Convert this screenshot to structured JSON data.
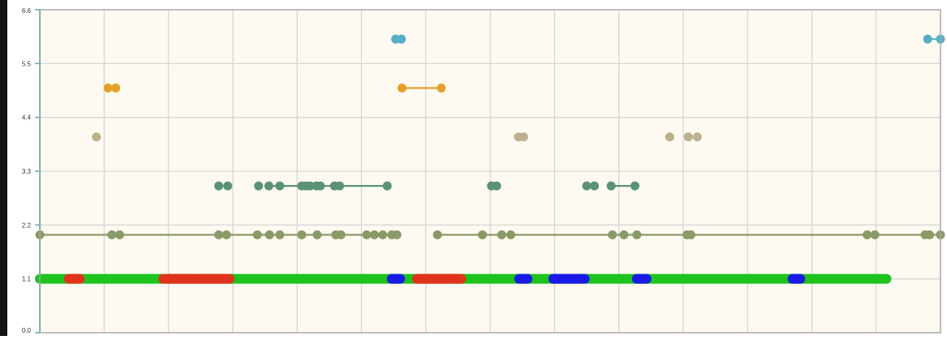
{
  "chart_data": {
    "type": "scatter",
    "ylim": [
      0.0,
      6.6
    ],
    "yticks": [
      "0.0",
      "1.1",
      "2.2",
      "3.3",
      "4.4",
      "5.5",
      "6.6"
    ],
    "grid": true,
    "title": "",
    "xlabel": "",
    "ylabel": "",
    "xlim": [
      0,
      14
    ],
    "series": [
      {
        "level": 1.1,
        "color": "#1ec31e",
        "segments": [
          [
            0,
            13.16
          ]
        ],
        "points": [
          0,
          13.16
        ]
      },
      {
        "level": 1.1,
        "color": "#e0331b",
        "segments": [
          [
            0.45,
            0.62
          ],
          [
            1.92,
            2.95
          ],
          [
            5.86,
            6.55
          ]
        ],
        "points": [
          0.45,
          0.55,
          0.62,
          1.92,
          2.1,
          2.3,
          2.5,
          2.7,
          2.95,
          5.86,
          6.1,
          6.3,
          6.55
        ]
      },
      {
        "level": 1.1,
        "color": "#1a1ae6",
        "segments": [
          [
            5.47,
            5.6
          ],
          [
            7.45,
            7.58
          ],
          [
            7.98,
            8.47
          ],
          [
            9.28,
            9.43
          ],
          [
            11.7,
            11.82
          ]
        ],
        "points": [
          5.47,
          5.6,
          7.45,
          7.58,
          7.98,
          8.14,
          8.3,
          8.47,
          9.28,
          9.43,
          11.7,
          11.82
        ]
      },
      {
        "level": 2.0,
        "color": "#8a9a66",
        "segments": [
          [
            0,
            5.55
          ],
          [
            6.18,
            14
          ]
        ],
        "points": [
          0,
          1.12,
          1.24,
          2.78,
          2.9,
          3.38,
          3.57,
          3.73,
          4.07,
          4.31,
          4.6,
          4.68,
          5.08,
          5.2,
          5.33,
          5.47,
          5.55,
          6.18,
          6.88,
          7.18,
          7.32,
          8.9,
          9.08,
          9.28,
          10.06,
          10.12,
          12.86,
          12.98,
          13.76,
          13.83,
          14
        ]
      },
      {
        "level": 3.0,
        "color": "#5a9275",
        "segments": [
          [
            3.54,
            5.4
          ],
          [
            8.88,
            9.25
          ]
        ],
        "points": [
          2.78,
          2.92,
          3.4,
          3.56,
          3.73,
          4.07,
          4.14,
          4.2,
          4.3,
          4.36,
          4.58,
          4.66,
          5.4,
          7.02,
          7.1,
          8.5,
          8.62,
          8.88,
          9.25
        ]
      },
      {
        "level": 4.0,
        "color": "#bdb08e",
        "segments": [],
        "points": [
          0.88,
          7.44,
          7.52,
          9.79,
          10.08,
          10.22
        ]
      },
      {
        "level": 5.0,
        "color": "#e4a12a",
        "segments": [
          [
            5.63,
            6.24
          ]
        ],
        "points": [
          1.06,
          1.18,
          5.63,
          6.24
        ]
      },
      {
        "level": 6.0,
        "color": "#56afc4",
        "segments": [
          [
            13.8,
            14
          ]
        ],
        "points": [
          5.53,
          5.62,
          13.8,
          14
        ]
      }
    ]
  }
}
